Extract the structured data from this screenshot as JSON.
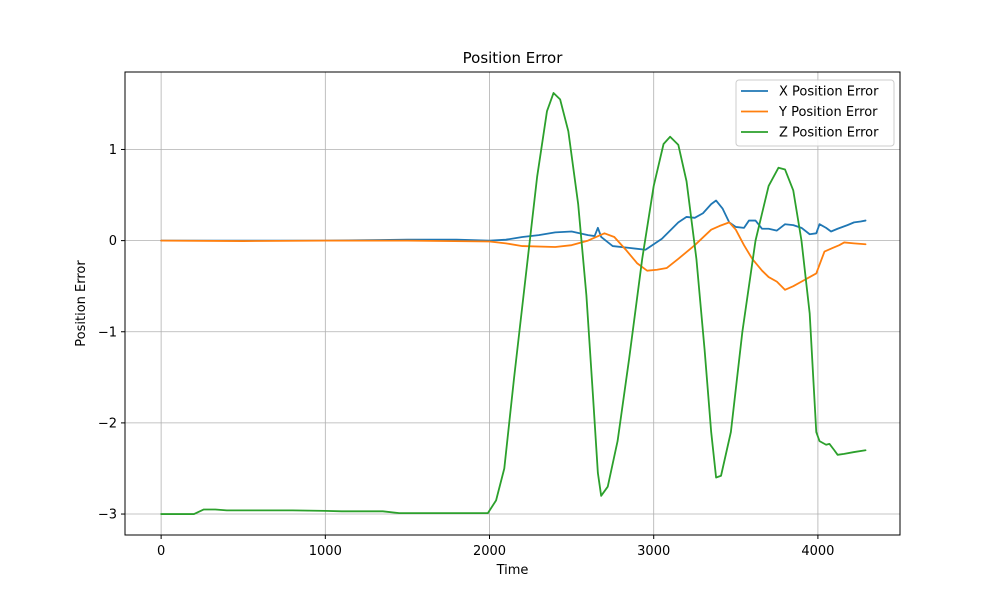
{
  "chart_data": {
    "type": "line",
    "title": "Position Error",
    "xlabel": "Time",
    "ylabel": "Position Error",
    "xlim": [
      -220,
      4500
    ],
    "ylim": [
      -3.23,
      1.85
    ],
    "xticks": [
      0,
      1000,
      2000,
      3000,
      4000
    ],
    "xtick_labels": [
      "0",
      "1000",
      "2000",
      "3000",
      "4000"
    ],
    "yticks": [
      -3,
      -2,
      -1,
      0,
      1
    ],
    "ytick_labels": [
      "−3",
      "−2",
      "−1",
      "0",
      "1"
    ],
    "grid": true,
    "legend_position": "top-right",
    "series": [
      {
        "name": "X Position Error",
        "color": "#1f77b4",
        "points": [
          [
            0,
            0.0
          ],
          [
            500,
            0.0
          ],
          [
            1000,
            0.0
          ],
          [
            1500,
            0.01
          ],
          [
            1800,
            0.01
          ],
          [
            2000,
            0.0
          ],
          [
            2100,
            0.01
          ],
          [
            2200,
            0.04
          ],
          [
            2300,
            0.06
          ],
          [
            2400,
            0.09
          ],
          [
            2500,
            0.1
          ],
          [
            2600,
            0.06
          ],
          [
            2640,
            0.05
          ],
          [
            2660,
            0.14
          ],
          [
            2680,
            0.04
          ],
          [
            2750,
            -0.06
          ],
          [
            2850,
            -0.08
          ],
          [
            2950,
            -0.1
          ],
          [
            3050,
            0.02
          ],
          [
            3150,
            0.2
          ],
          [
            3200,
            0.26
          ],
          [
            3250,
            0.25
          ],
          [
            3300,
            0.3
          ],
          [
            3350,
            0.4
          ],
          [
            3380,
            0.44
          ],
          [
            3420,
            0.35
          ],
          [
            3460,
            0.2
          ],
          [
            3500,
            0.15
          ],
          [
            3550,
            0.14
          ],
          [
            3580,
            0.22
          ],
          [
            3620,
            0.22
          ],
          [
            3660,
            0.13
          ],
          [
            3700,
            0.13
          ],
          [
            3750,
            0.11
          ],
          [
            3800,
            0.18
          ],
          [
            3850,
            0.17
          ],
          [
            3900,
            0.14
          ],
          [
            3950,
            0.07
          ],
          [
            3990,
            0.08
          ],
          [
            4010,
            0.18
          ],
          [
            4050,
            0.14
          ],
          [
            4080,
            0.1
          ],
          [
            4120,
            0.13
          ],
          [
            4180,
            0.17
          ],
          [
            4220,
            0.2
          ],
          [
            4260,
            0.21
          ],
          [
            4290,
            0.22
          ]
        ]
      },
      {
        "name": "Y Position Error",
        "color": "#ff7f0e",
        "points": [
          [
            0,
            0.0
          ],
          [
            500,
            -0.005
          ],
          [
            1000,
            0.0
          ],
          [
            1500,
            0.0
          ],
          [
            2000,
            -0.01
          ],
          [
            2100,
            -0.03
          ],
          [
            2200,
            -0.06
          ],
          [
            2400,
            -0.07
          ],
          [
            2500,
            -0.05
          ],
          [
            2600,
            0.0
          ],
          [
            2650,
            0.04
          ],
          [
            2700,
            0.08
          ],
          [
            2760,
            0.04
          ],
          [
            2830,
            -0.1
          ],
          [
            2900,
            -0.25
          ],
          [
            2960,
            -0.33
          ],
          [
            3020,
            -0.32
          ],
          [
            3080,
            -0.3
          ],
          [
            3150,
            -0.2
          ],
          [
            3250,
            -0.05
          ],
          [
            3350,
            0.12
          ],
          [
            3400,
            0.16
          ],
          [
            3460,
            0.2
          ],
          [
            3500,
            0.12
          ],
          [
            3550,
            -0.05
          ],
          [
            3600,
            -0.2
          ],
          [
            3660,
            -0.33
          ],
          [
            3700,
            -0.4
          ],
          [
            3750,
            -0.45
          ],
          [
            3800,
            -0.54
          ],
          [
            3850,
            -0.5
          ],
          [
            3900,
            -0.45
          ],
          [
            3950,
            -0.4
          ],
          [
            3990,
            -0.36
          ],
          [
            4040,
            -0.12
          ],
          [
            4090,
            -0.08
          ],
          [
            4130,
            -0.05
          ],
          [
            4160,
            -0.02
          ],
          [
            4220,
            -0.03
          ],
          [
            4290,
            -0.04
          ]
        ]
      },
      {
        "name": "Z Position Error",
        "color": "#2ca02c",
        "points": [
          [
            0,
            -3.0
          ],
          [
            200,
            -3.0
          ],
          [
            260,
            -2.95
          ],
          [
            330,
            -2.95
          ],
          [
            400,
            -2.96
          ],
          [
            600,
            -2.96
          ],
          [
            800,
            -2.96
          ],
          [
            1000,
            -2.965
          ],
          [
            1100,
            -2.97
          ],
          [
            1350,
            -2.97
          ],
          [
            1450,
            -2.99
          ],
          [
            1600,
            -2.99
          ],
          [
            1800,
            -2.99
          ],
          [
            1990,
            -2.99
          ],
          [
            2040,
            -2.85
          ],
          [
            2090,
            -2.5
          ],
          [
            2150,
            -1.5
          ],
          [
            2220,
            -0.4
          ],
          [
            2290,
            0.7
          ],
          [
            2350,
            1.42
          ],
          [
            2390,
            1.62
          ],
          [
            2430,
            1.55
          ],
          [
            2480,
            1.2
          ],
          [
            2540,
            0.4
          ],
          [
            2590,
            -0.6
          ],
          [
            2630,
            -1.7
          ],
          [
            2660,
            -2.55
          ],
          [
            2680,
            -2.8
          ],
          [
            2720,
            -2.7
          ],
          [
            2780,
            -2.2
          ],
          [
            2850,
            -1.3
          ],
          [
            2930,
            -0.2
          ],
          [
            3000,
            0.6
          ],
          [
            3060,
            1.06
          ],
          [
            3100,
            1.14
          ],
          [
            3150,
            1.05
          ],
          [
            3200,
            0.65
          ],
          [
            3260,
            -0.2
          ],
          [
            3310,
            -1.2
          ],
          [
            3350,
            -2.1
          ],
          [
            3380,
            -2.6
          ],
          [
            3410,
            -2.58
          ],
          [
            3470,
            -2.1
          ],
          [
            3540,
            -1.0
          ],
          [
            3620,
            0.0
          ],
          [
            3700,
            0.6
          ],
          [
            3760,
            0.8
          ],
          [
            3800,
            0.78
          ],
          [
            3850,
            0.55
          ],
          [
            3900,
            0.0
          ],
          [
            3950,
            -0.8
          ],
          [
            3990,
            -2.1
          ],
          [
            4010,
            -2.2
          ],
          [
            4050,
            -2.24
          ],
          [
            4070,
            -2.23
          ],
          [
            4100,
            -2.3
          ],
          [
            4120,
            -2.35
          ],
          [
            4160,
            -2.34
          ],
          [
            4220,
            -2.32
          ],
          [
            4290,
            -2.3
          ]
        ]
      }
    ]
  }
}
